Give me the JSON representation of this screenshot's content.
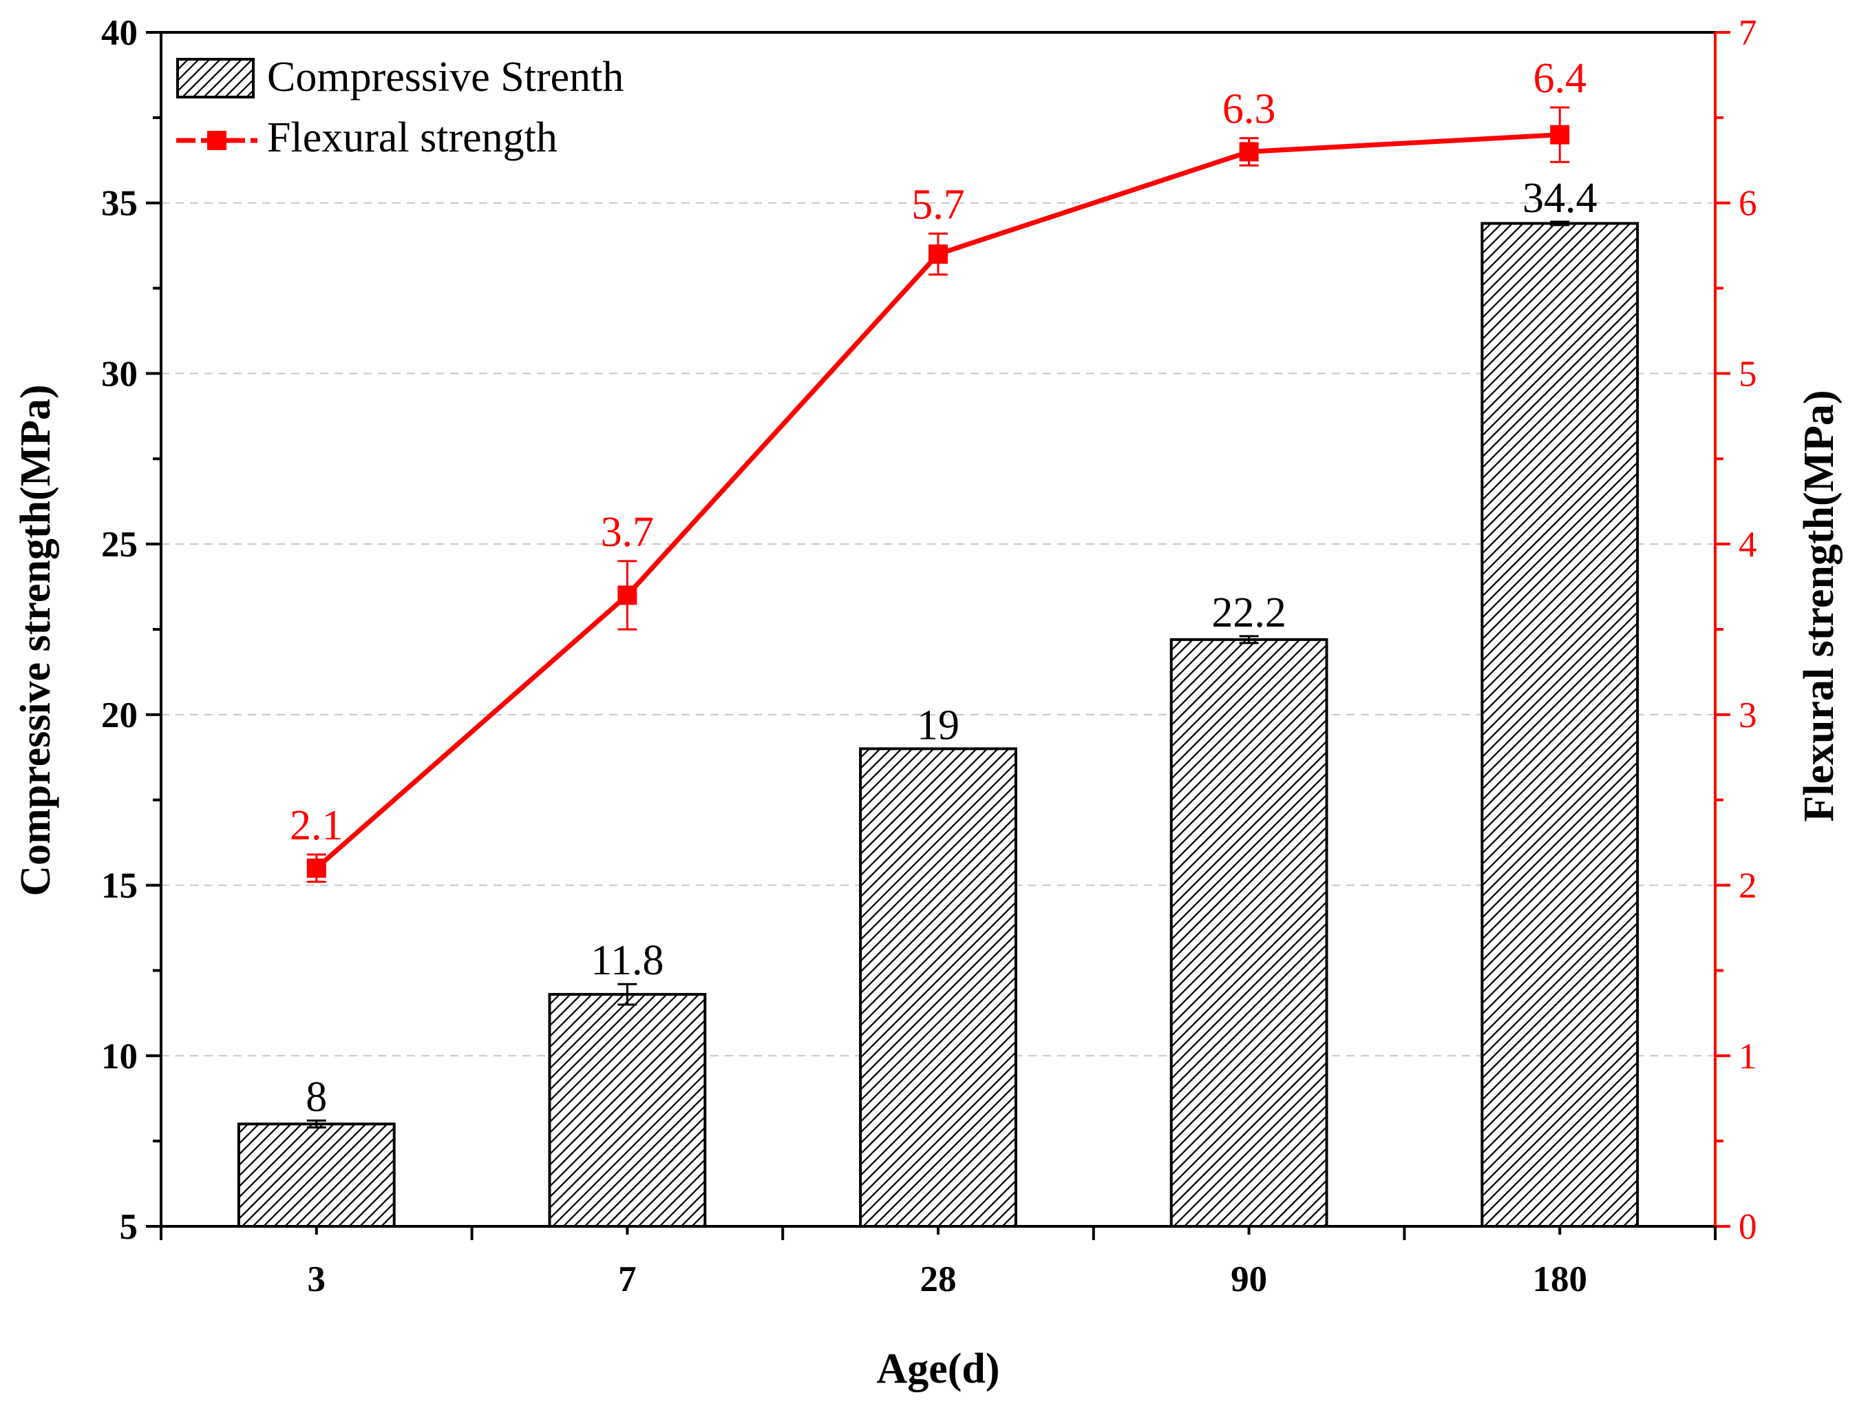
{
  "chart_data": {
    "type": "bar+line",
    "categories": [
      "3",
      "7",
      "28",
      "90",
      "180"
    ],
    "xlabel": "Age(d)",
    "ylabel_left": "Compressive strength(MPa)",
    "ylabel_right": "Flexural strength(MPa)",
    "ylim_left": [
      5,
      40
    ],
    "yticks_left": [
      5,
      10,
      15,
      20,
      25,
      30,
      35,
      40
    ],
    "ylim_right": [
      0,
      7
    ],
    "yticks_right": [
      0,
      1,
      2,
      3,
      4,
      5,
      6,
      7
    ],
    "grid": "horizontal dashed",
    "legend_position": "top-left",
    "series": [
      {
        "name": "Compressive Strenth",
        "kind": "bar",
        "axis": "left",
        "values": [
          8,
          11.8,
          19,
          22.2,
          34.4
        ],
        "errors": [
          0.1,
          0.3,
          0,
          0.1,
          0.05
        ],
        "labels": [
          "8",
          "11.8",
          "19",
          "22.2",
          "34.4"
        ],
        "pattern": "diagonal-hatch"
      },
      {
        "name": "Flexural strength",
        "kind": "line",
        "axis": "right",
        "values": [
          2.1,
          3.7,
          5.7,
          6.3,
          6.4
        ],
        "errors": [
          0.08,
          0.2,
          0.12,
          0.08,
          0.16
        ],
        "labels": [
          "2.1",
          "3.7",
          "5.7",
          "6.3",
          "6.4"
        ],
        "color": "#ff0000"
      }
    ]
  }
}
